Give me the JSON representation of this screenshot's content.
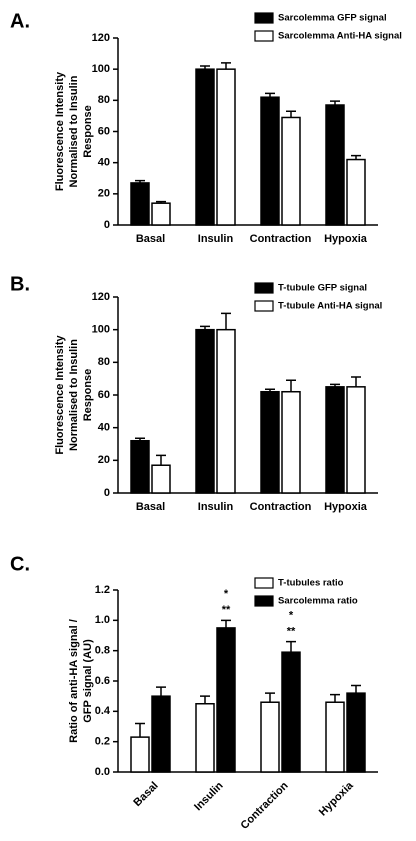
{
  "chart_data": [
    {
      "type": "bar",
      "panel_label": "A.",
      "ylabel": [
        "Fluorescence Intensity",
        "Normalised to Insulin",
        "Response"
      ],
      "categories": [
        "Basal",
        "Insulin",
        "Contraction",
        "Hypoxia"
      ],
      "series": [
        {
          "name": "Sarcolemma GFP signal",
          "color": "#000000",
          "values": [
            27,
            100,
            82,
            77
          ],
          "errors": [
            1.5,
            2,
            2.5,
            2.5
          ]
        },
        {
          "name": "Sarcolemma Anti-HA signal",
          "color": "#ffffff",
          "values": [
            14,
            100,
            69,
            42
          ],
          "errors": [
            1,
            4,
            4,
            2.5
          ]
        }
      ],
      "ylim": [
        0,
        120
      ],
      "yticks": [
        0,
        20,
        40,
        60,
        80,
        100,
        120
      ]
    },
    {
      "type": "bar",
      "panel_label": "B.",
      "ylabel": [
        "Fluorescence Intensity",
        "Normalised to Insulin",
        "Response"
      ],
      "categories": [
        "Basal",
        "Insulin",
        "Contraction",
        "Hypoxia"
      ],
      "series": [
        {
          "name": "T-tubule GFP signal",
          "color": "#000000",
          "values": [
            32,
            100,
            62,
            65
          ],
          "errors": [
            1.5,
            2,
            1.5,
            1.5
          ]
        },
        {
          "name": "T-tubule Anti-HA signal",
          "color": "#ffffff",
          "values": [
            17,
            100,
            62,
            65
          ],
          "errors": [
            6,
            10,
            7,
            6
          ]
        }
      ],
      "ylim": [
        0,
        120
      ],
      "yticks": [
        0,
        20,
        40,
        60,
        80,
        100,
        120
      ]
    },
    {
      "type": "bar",
      "panel_label": "C.",
      "ylabel": [
        "Ratio of anti-HA signal /",
        "GFP signal (AU)"
      ],
      "categories": [
        "Basal",
        "Insulin",
        "Contraction",
        "Hypoxia"
      ],
      "rotate_categories": true,
      "series": [
        {
          "name": "T-tubules ratio",
          "color": "#ffffff",
          "values": [
            0.23,
            0.45,
            0.46,
            0.46
          ],
          "errors": [
            0.09,
            0.05,
            0.06,
            0.05
          ]
        },
        {
          "name": "Sarcolemma ratio",
          "color": "#000000",
          "values": [
            0.5,
            0.95,
            0.79,
            0.52
          ],
          "errors": [
            0.06,
            0.05,
            0.07,
            0.05
          ]
        }
      ],
      "annotations": [
        {
          "category": "Insulin",
          "series": "Sarcolemma ratio",
          "texts": [
            "*",
            "**"
          ]
        },
        {
          "category": "Contraction",
          "series": "Sarcolemma ratio",
          "texts": [
            "*",
            "**"
          ]
        }
      ],
      "ylim": [
        0,
        1.2
      ],
      "yticks": [
        {
          "value": 0,
          "label": "0.0"
        },
        0.2,
        0.4,
        0.6,
        0.8,
        {
          "value": 1,
          "label": "1.0"
        },
        1.2
      ]
    }
  ]
}
